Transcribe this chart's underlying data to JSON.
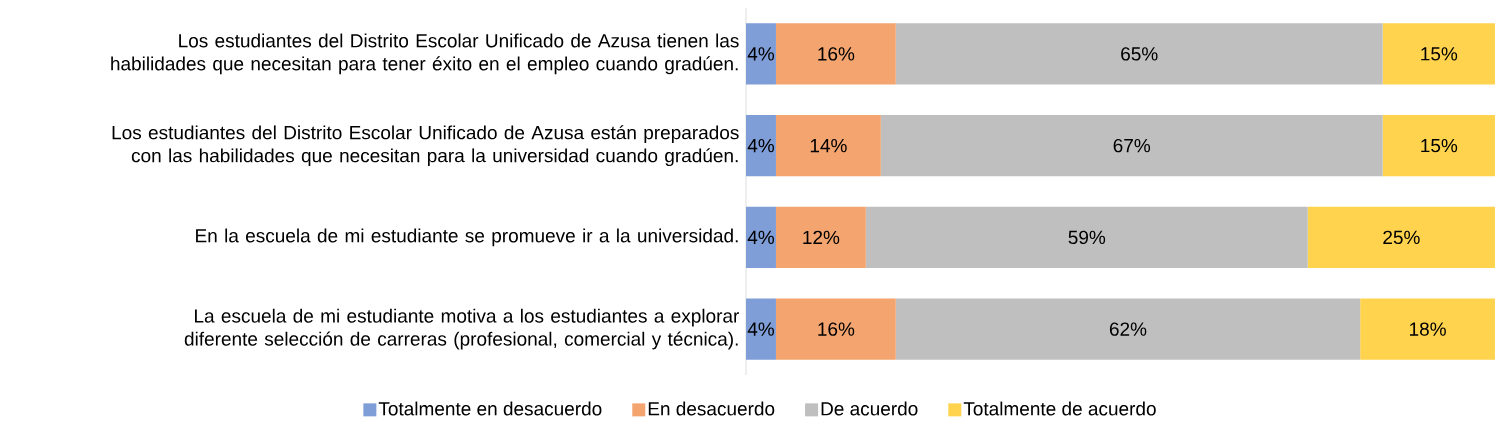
{
  "chart_data": {
    "type": "bar",
    "orientation": "horizontal",
    "stacked": true,
    "xlim": [
      0,
      100
    ],
    "tick_labels": "y",
    "legend": "bottom",
    "categories": [
      "Los estudiantes del Distrito Escolar Unificado de Azusa tienen las habilidades que necesitan para tener éxito en el empleo cuando gradúen.",
      "Los estudiantes del Distrito Escolar Unificado de Azusa están preparados con las habilidades que necesitan para la universidad cuando gradúen.",
      "En la escuela de mi estudiante se promueve ir a la universidad.",
      "La escuela de mi estudiante  motiva a los estudiantes a explorar diferente selección de carreras (profesional, comercial y técnica)."
    ],
    "series": [
      {
        "name": "Totalmente en desacuerdo",
        "color": "#7f9ed8",
        "values": [
          4,
          4,
          4,
          4
        ],
        "value_labels": [
          "4%",
          "4%",
          "4%",
          "4%"
        ]
      },
      {
        "name": "En desacuerdo",
        "color": "#f4a46f",
        "values": [
          16,
          14,
          12,
          16
        ],
        "value_labels": [
          "16%",
          "14%",
          "12%",
          "16%"
        ]
      },
      {
        "name": "De acuerdo",
        "color": "#bfbfbf",
        "values": [
          65,
          67,
          59,
          62
        ],
        "value_labels": [
          "65%",
          "67%",
          "59%",
          "62%"
        ]
      },
      {
        "name": "Totalmente de acuerdo",
        "color": "#ffd34e",
        "values": [
          15,
          15,
          25,
          18
        ],
        "value_labels": [
          "15%",
          "15%",
          "25%",
          "18%"
        ]
      }
    ]
  }
}
